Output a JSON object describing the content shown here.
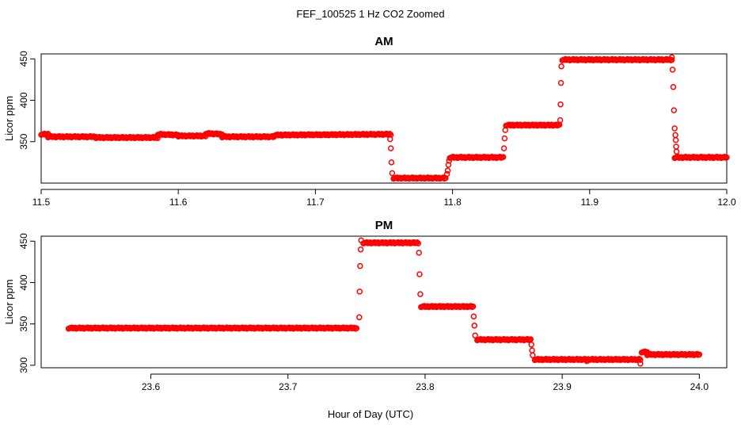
{
  "figure": {
    "suptitle": "FEF_100525  1 Hz CO2 Zoomed",
    "xlabel": "Hour of Day (UTC)",
    "point_color": "#ff0000"
  },
  "chart_data": [
    {
      "type": "scatter",
      "title": "AM",
      "xlabel": "",
      "ylabel": "Licor ppm",
      "xlim": [
        11.5,
        12.0
      ],
      "ylim": [
        300,
        456
      ],
      "xticks": [
        11.5,
        11.6,
        11.7,
        11.8,
        11.9,
        12.0
      ],
      "xtick_labels": [
        "11.5",
        "11.6",
        "11.7",
        "11.8",
        "11.9",
        "12.0"
      ],
      "yticks": [
        350,
        400,
        450
      ],
      "ytick_labels": [
        "350",
        "400",
        "450"
      ],
      "grid": false,
      "series": [
        {
          "color": "#ff0000",
          "segments": [
            {
              "x": [
                11.5,
                11.505
              ],
              "y": [
                359,
                359
              ]
            },
            {
              "x": [
                11.505,
                11.54
              ],
              "y": [
                356,
                356
              ]
            },
            {
              "x": [
                11.54,
                11.585
              ],
              "y": [
                355,
                355
              ]
            },
            {
              "x": [
                11.585,
                11.6
              ],
              "y": [
                359,
                358
              ]
            },
            {
              "x": [
                11.6,
                11.62
              ],
              "y": [
                357,
                357
              ]
            },
            {
              "x": [
                11.62,
                11.632
              ],
              "y": [
                360,
                359
              ]
            },
            {
              "x": [
                11.632,
                11.67
              ],
              "y": [
                356,
                356
              ]
            },
            {
              "x": [
                11.67,
                11.755
              ],
              "y": [
                358,
                359
              ]
            },
            {
              "x": [
                11.757,
                11.795
              ],
              "y": [
                306,
                306
              ]
            },
            {
              "x": [
                11.798,
                11.837
              ],
              "y": [
                331,
                331
              ]
            },
            {
              "x": [
                11.839,
                11.878
              ],
              "y": [
                370,
                370
              ]
            },
            {
              "x": [
                11.88,
                11.96
              ],
              "y": [
                449,
                449
              ]
            },
            {
              "x": [
                11.962,
                12.0
              ],
              "y": [
                331,
                331
              ]
            }
          ],
          "points": [
            {
              "x": 11.7545,
              "y": 353
            },
            {
              "x": 11.755,
              "y": 342
            },
            {
              "x": 11.7555,
              "y": 325
            },
            {
              "x": 11.756,
              "y": 312
            },
            {
              "x": 11.796,
              "y": 311
            },
            {
              "x": 11.7965,
              "y": 315
            },
            {
              "x": 11.797,
              "y": 322
            },
            {
              "x": 11.7975,
              "y": 327
            },
            {
              "x": 11.8375,
              "y": 342
            },
            {
              "x": 11.838,
              "y": 354
            },
            {
              "x": 11.8385,
              "y": 364
            },
            {
              "x": 11.8785,
              "y": 376
            },
            {
              "x": 11.8788,
              "y": 395
            },
            {
              "x": 11.8791,
              "y": 421
            },
            {
              "x": 11.8794,
              "y": 441
            },
            {
              "x": 11.96,
              "y": 452
            },
            {
              "x": 11.9605,
              "y": 437
            },
            {
              "x": 11.961,
              "y": 416
            },
            {
              "x": 11.9615,
              "y": 388
            },
            {
              "x": 11.962,
              "y": 366
            },
            {
              "x": 11.9625,
              "y": 358
            },
            {
              "x": 11.9628,
              "y": 352
            },
            {
              "x": 11.9631,
              "y": 344
            },
            {
              "x": 11.9634,
              "y": 338
            }
          ]
        }
      ]
    },
    {
      "type": "scatter",
      "title": "PM",
      "xlabel": "",
      "ylabel": "Licor ppm",
      "xlim": [
        23.52,
        24.02
      ],
      "ylim": [
        297,
        456
      ],
      "xticks": [
        23.6,
        23.7,
        23.8,
        23.9,
        24.0
      ],
      "xtick_labels": [
        "23.6",
        "23.7",
        "23.8",
        "23.9",
        "24.0"
      ],
      "yticks": [
        300,
        350,
        400,
        450
      ],
      "ytick_labels": [
        "300",
        "350",
        "400",
        "450"
      ],
      "grid": false,
      "series": [
        {
          "color": "#ff0000",
          "segments": [
            {
              "x": [
                23.54,
                23.75
              ],
              "y": [
                345,
                345
              ]
            },
            {
              "x": [
                23.755,
                23.795
              ],
              "y": [
                448,
                448
              ]
            },
            {
              "x": [
                23.797,
                23.835
              ],
              "y": [
                371,
                371
              ]
            },
            {
              "x": [
                23.838,
                23.877
              ],
              "y": [
                331,
                331
              ]
            },
            {
              "x": [
                23.88,
                23.957
              ],
              "y": [
                307,
                307
              ]
            },
            {
              "x": [
                23.958,
                23.962
              ],
              "y": [
                316,
                316
              ]
            },
            {
              "x": [
                23.962,
                24.0
              ],
              "y": [
                313,
                313
              ]
            }
          ],
          "points": [
            {
              "x": 23.752,
              "y": 358
            },
            {
              "x": 23.7523,
              "y": 389
            },
            {
              "x": 23.7526,
              "y": 420
            },
            {
              "x": 23.753,
              "y": 440
            },
            {
              "x": 23.7534,
              "y": 451
            },
            {
              "x": 23.7955,
              "y": 436
            },
            {
              "x": 23.796,
              "y": 410
            },
            {
              "x": 23.7965,
              "y": 386
            },
            {
              "x": 23.8355,
              "y": 359
            },
            {
              "x": 23.836,
              "y": 348
            },
            {
              "x": 23.8365,
              "y": 336
            },
            {
              "x": 23.8775,
              "y": 325
            },
            {
              "x": 23.878,
              "y": 318
            },
            {
              "x": 23.8785,
              "y": 312
            },
            {
              "x": 23.918,
              "y": 305
            },
            {
              "x": 23.957,
              "y": 302
            }
          ]
        }
      ]
    }
  ]
}
